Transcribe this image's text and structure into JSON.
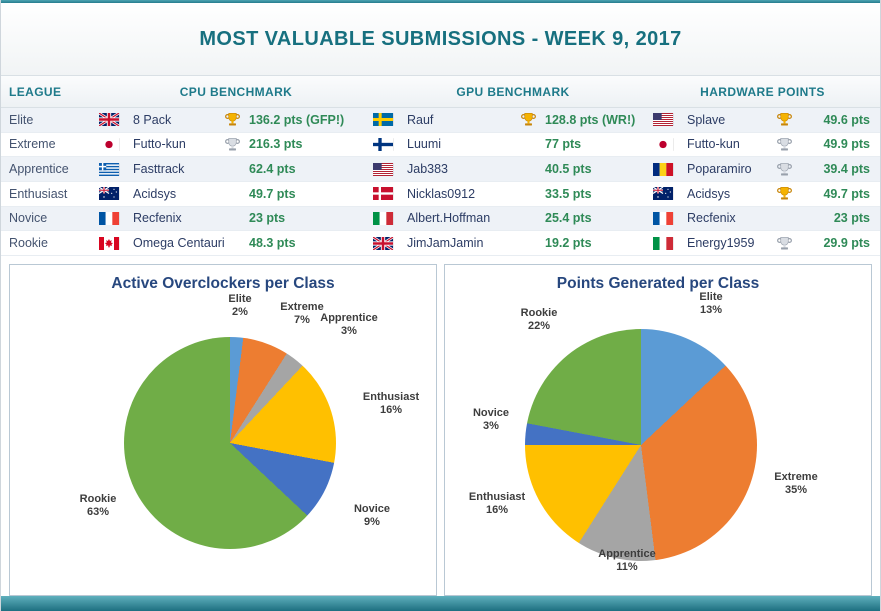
{
  "header": {
    "title": "MOST VALUABLE SUBMISSIONS - WEEK 9, 2017"
  },
  "table": {
    "headers": {
      "league": "LEAGUE",
      "cpu": "CPU BENCHMARK",
      "gpu": "GPU BENCHMARK",
      "hw": "HARDWARE POINTS"
    },
    "rows": [
      {
        "league": "Elite",
        "cpu": {
          "flag": "gb",
          "name": "8 Pack",
          "trophy": "gold",
          "points": "136.2 pts (GFP!)"
        },
        "gpu": {
          "flag": "se",
          "name": "Rauf",
          "trophy": "gold",
          "points": "128.8 pts (WR!)"
        },
        "hw": {
          "flag": "us",
          "name": "Splave",
          "trophy": "gold",
          "points": "49.6 pts"
        }
      },
      {
        "league": "Extreme",
        "cpu": {
          "flag": "jp",
          "name": "Futto-kun",
          "trophy": "silver",
          "points": "216.3 pts"
        },
        "gpu": {
          "flag": "fi",
          "name": "Luumi",
          "trophy": null,
          "points": "77 pts"
        },
        "hw": {
          "flag": "jp",
          "name": "Futto-kun",
          "trophy": "silver",
          "points": "49.9 pts"
        }
      },
      {
        "league": "Apprentice",
        "cpu": {
          "flag": "gr",
          "name": "Fasttrack",
          "trophy": null,
          "points": "62.4 pts"
        },
        "gpu": {
          "flag": "us",
          "name": "Jab383",
          "trophy": null,
          "points": "40.5 pts"
        },
        "hw": {
          "flag": "ro",
          "name": "Poparamiro",
          "trophy": "silver",
          "points": "39.4 pts"
        }
      },
      {
        "league": "Enthusiast",
        "cpu": {
          "flag": "au",
          "name": "Acidsys",
          "trophy": null,
          "points": "49.7 pts"
        },
        "gpu": {
          "flag": "dk",
          "name": "Nicklas0912",
          "trophy": null,
          "points": "33.5 pts"
        },
        "hw": {
          "flag": "au",
          "name": "Acidsys",
          "trophy": "gold",
          "points": "49.7 pts"
        }
      },
      {
        "league": "Novice",
        "cpu": {
          "flag": "fr",
          "name": "Recfenix",
          "trophy": null,
          "points": "23 pts"
        },
        "gpu": {
          "flag": "it",
          "name": "Albert.Hoffman",
          "trophy": null,
          "points": "25.4 pts"
        },
        "hw": {
          "flag": "fr",
          "name": "Recfenix",
          "trophy": null,
          "points": "23 pts"
        }
      },
      {
        "league": "Rookie",
        "cpu": {
          "flag": "ca",
          "name": "Omega Centauri",
          "trophy": null,
          "points": "48.3 pts"
        },
        "gpu": {
          "flag": "gb",
          "name": "JimJamJamin",
          "trophy": null,
          "points": "19.2 pts"
        },
        "hw": {
          "flag": "it",
          "name": "Energy1959",
          "trophy": "silver",
          "points": "29.9 pts"
        }
      }
    ]
  },
  "icon_colors": {
    "trophy_gold": {
      "main": "#F5B301",
      "dark": "#C8860A"
    },
    "trophy_silver": {
      "main": "#D9DDE3",
      "dark": "#99A1AC"
    }
  },
  "accent_colors": {
    "teal_bar": "#2B8496",
    "points_green": "#2F8A57",
    "header_teal": "#17707F"
  },
  "chart_data": [
    {
      "type": "pie",
      "title": "Active Overclockers per Class",
      "categories": [
        "Elite",
        "Extreme",
        "Apprentice",
        "Enthusiast",
        "Novice",
        "Rookie"
      ],
      "values": [
        2,
        7,
        3,
        16,
        9,
        63
      ],
      "percent_labels": [
        "2%",
        "7%",
        "3%",
        "16%",
        "9%",
        "63%"
      ],
      "colors": [
        "#5B9BD5",
        "#ED7D31",
        "#A5A5A5",
        "#FFC000",
        "#4472C4",
        "#70AD47"
      ],
      "start_angle_deg": 0,
      "direction": "clockwise",
      "legend": "none",
      "label_style": "category-name-with-percent"
    },
    {
      "type": "pie",
      "title": "Points Generated per Class",
      "categories": [
        "Elite",
        "Extreme",
        "Apprentice",
        "Enthusiast",
        "Novice",
        "Rookie"
      ],
      "values": [
        13,
        35,
        11,
        16,
        3,
        22
      ],
      "percent_labels": [
        "13%",
        "35%",
        "11%",
        "16%",
        "3%",
        "22%"
      ],
      "colors": [
        "#5B9BD5",
        "#ED7D31",
        "#A5A5A5",
        "#FFC000",
        "#4472C4",
        "#70AD47"
      ],
      "start_angle_deg": 0,
      "direction": "clockwise",
      "legend": "none",
      "label_style": "category-name-with-percent"
    }
  ]
}
